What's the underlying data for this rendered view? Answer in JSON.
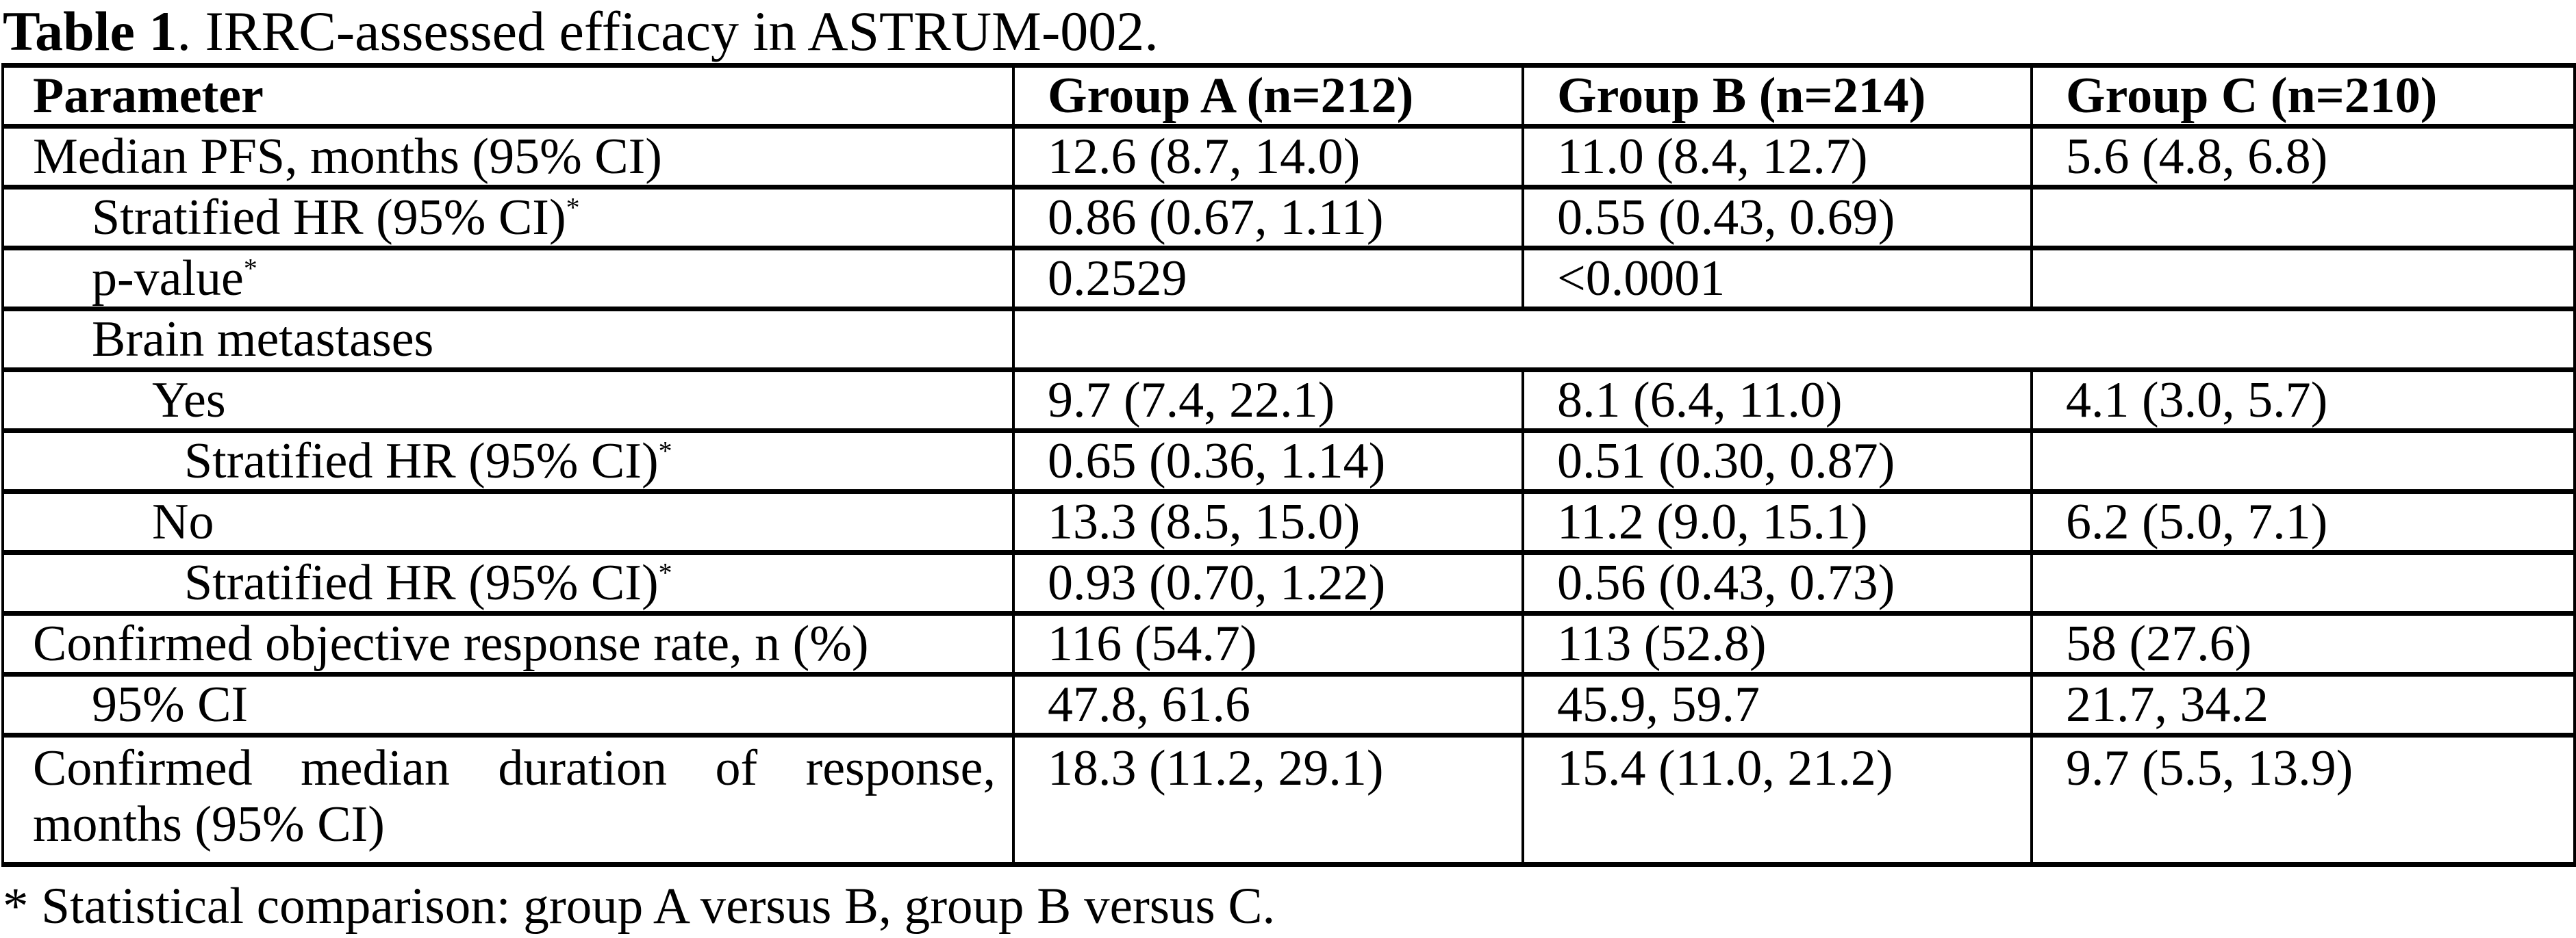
{
  "title": {
    "bold": "Table 1",
    "rest": ". IRRC-assessed efficacy in ASTRUM-002."
  },
  "table": {
    "columns": [
      "Parameter",
      "Group A (n=212)",
      "Group B (n=214)",
      "Group C (n=210)"
    ],
    "rows": [
      {
        "param": "Median PFS, months (95% CI)",
        "sup": "",
        "cells": [
          "12.6 (8.7, 14.0)",
          "11.0 (8.4, 12.7)",
          "5.6 (4.8, 6.8)"
        ]
      },
      {
        "param": "Stratified HR (95% CI)",
        "sup": "*",
        "cells": [
          "0.86 (0.67, 1.11)",
          "0.55 (0.43, 0.69)",
          ""
        ]
      },
      {
        "param": "p-value",
        "sup": "*",
        "cells": [
          "0.2529",
          "<0.0001",
          ""
        ]
      },
      {
        "param": "Brain metastases",
        "sup": "",
        "cells": [
          ""
        ]
      },
      {
        "param": "Yes",
        "sup": "",
        "cells": [
          "9.7 (7.4, 22.1)",
          "8.1 (6.4, 11.0)",
          "4.1 (3.0, 5.7)"
        ]
      },
      {
        "param": "Stratified HR (95% CI)",
        "sup": "*",
        "cells": [
          "0.65 (0.36, 1.14)",
          "0.51 (0.30, 0.87)",
          ""
        ]
      },
      {
        "param": "No",
        "sup": "",
        "cells": [
          "13.3 (8.5, 15.0)",
          "11.2 (9.0, 15.1)",
          "6.2 (5.0, 7.1)"
        ]
      },
      {
        "param": "Stratified HR (95% CI)",
        "sup": "*",
        "cells": [
          "0.93 (0.70, 1.22)",
          "0.56 (0.43, 0.73)",
          ""
        ]
      },
      {
        "param": "Confirmed objective response rate, n (%)",
        "sup": "",
        "cells": [
          "116 (54.7)",
          "113 (52.8)",
          "58 (27.6)"
        ]
      },
      {
        "param": "95% CI",
        "sup": "",
        "cells": [
          "47.8, 61.6",
          "45.9, 59.7",
          "21.7, 34.2"
        ]
      },
      {
        "param": "Confirmed median duration of response, months (95% CI)",
        "sup": "",
        "cells": [
          "18.3 (11.2, 29.1)",
          "15.4 (11.0, 21.2)",
          "9.7 (5.5, 13.9)"
        ]
      }
    ]
  },
  "footnote": "* Statistical comparison: group A versus B, group B versus C."
}
